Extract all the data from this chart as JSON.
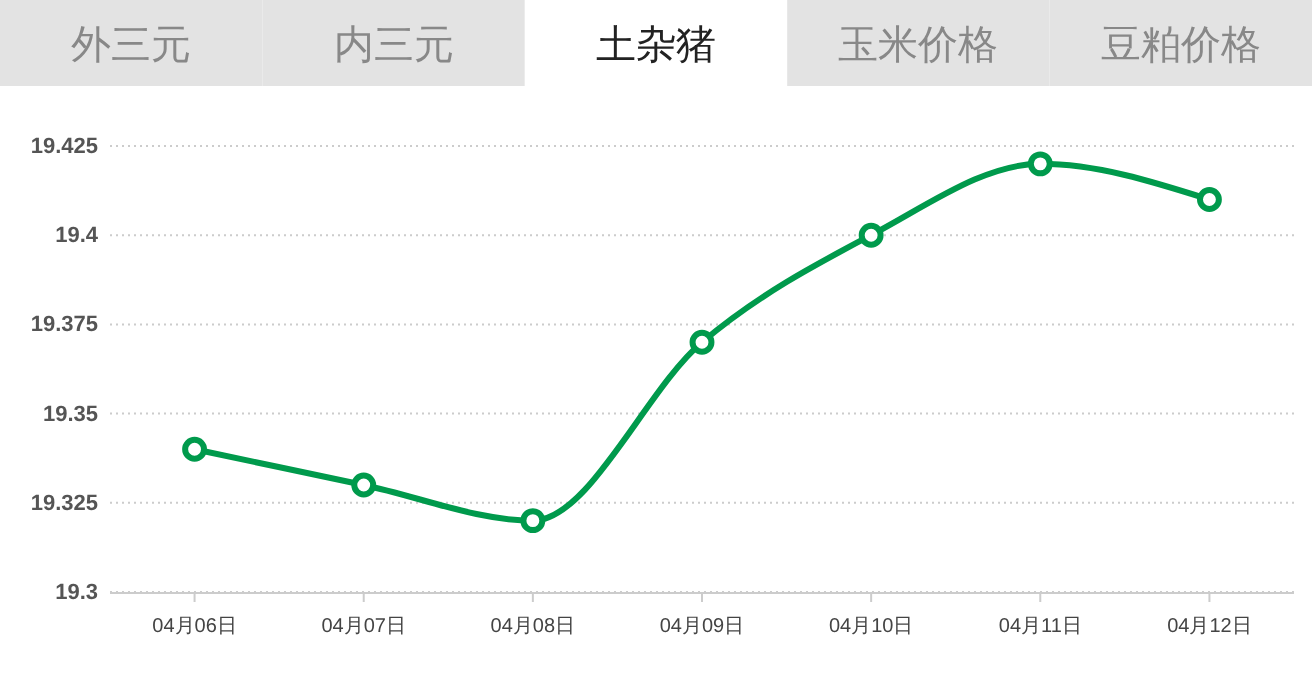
{
  "chart_data": {
    "type": "line",
    "title": "土杂猪",
    "annotations": [
      "外三元",
      "内三元",
      "玉米价格",
      "豆粕价格"
    ],
    "categories": [
      "04月06日",
      "04月07日",
      "04月08日",
      "04月09日",
      "04月10日",
      "04月11日",
      "04月12日"
    ],
    "series": [
      {
        "color": "#009a4c",
        "values": [
          19.34,
          19.33,
          19.32,
          19.37,
          19.4,
          19.42,
          19.41
        ]
      }
    ],
    "ylim": [
      19.3,
      19.425
    ],
    "yticks": [
      19.3,
      19.325,
      19.35,
      19.375,
      19.4,
      19.425
    ],
    "grid": "y",
    "marker": "circle",
    "line_style": "solid"
  }
}
